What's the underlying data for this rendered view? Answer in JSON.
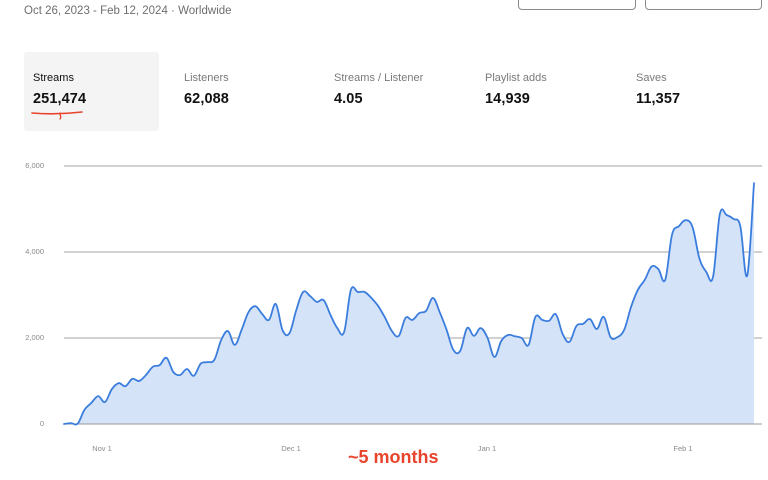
{
  "header": {
    "date_range_label": "Oct 26, 2023 - Feb 12, 2024 · Worldwide"
  },
  "top_buttons": [
    {
      "label": ""
    },
    {
      "label": ""
    }
  ],
  "stats": [
    {
      "label": "Streams",
      "value": "251,474",
      "active": true
    },
    {
      "label": "Listeners",
      "value": "62,088",
      "active": false
    },
    {
      "label": "Streams / Listener",
      "value": "4.05",
      "active": false
    },
    {
      "label": "Playlist adds",
      "value": "14,939",
      "active": false
    },
    {
      "label": "Saves",
      "value": "11,357",
      "active": false
    }
  ],
  "colors": {
    "line": "#3b7ddd",
    "fill": "#d4e3f8",
    "grid": "#9a9a9a",
    "annotation": "#e8442c",
    "underline": "#e8442c",
    "active_tab_bg": "#f4f4f4"
  },
  "annotation": {
    "text": "~5 months"
  },
  "chart_data": {
    "type": "area",
    "title": "Streams",
    "xlabel": "",
    "ylabel": "",
    "ylim": [
      0,
      6000
    ],
    "yticks": [
      "0",
      "2,000",
      "4,000",
      "6,000"
    ],
    "xticks": [
      "Nov 1",
      "Dec 1",
      "Jan 1",
      "Feb 1"
    ],
    "grid": true,
    "legend": "none",
    "x_range": [
      "Oct 26, 2023",
      "Feb 12, 2024"
    ],
    "series": [
      {
        "name": "Streams",
        "points": [
          [
            "Oct 26",
            0
          ],
          [
            "Oct 28",
            20
          ],
          [
            "Oct 30",
            10
          ],
          [
            "Nov 1",
            330
          ],
          [
            "Nov 3",
            490
          ],
          [
            "Nov 4",
            650
          ],
          [
            "Nov 5",
            510
          ],
          [
            "Nov 7",
            810
          ],
          [
            "Nov 8",
            950
          ],
          [
            "Nov 10",
            880
          ],
          [
            "Nov 11",
            1050
          ],
          [
            "Nov 12",
            1000
          ],
          [
            "Nov 13",
            1140
          ],
          [
            "Nov 14",
            1330
          ],
          [
            "Nov 16",
            1370
          ],
          [
            "Nov 17",
            1540
          ],
          [
            "Nov 18",
            1210
          ],
          [
            "Nov 19",
            1140
          ],
          [
            "Nov 20",
            1280
          ],
          [
            "Nov 21",
            1120
          ],
          [
            "Nov 22",
            1400
          ],
          [
            "Nov 24",
            1440
          ],
          [
            "Nov 25",
            1490
          ],
          [
            "Nov 26",
            1950
          ],
          [
            "Nov 27",
            2160
          ],
          [
            "Nov 28",
            1840
          ],
          [
            "Nov 29",
            2190
          ],
          [
            "Nov 30",
            2600
          ],
          [
            "Dec 1",
            2740
          ],
          [
            "Dec 2",
            2560
          ],
          [
            "Dec 3",
            2420
          ],
          [
            "Dec 4",
            2790
          ],
          [
            "Dec 5",
            2180
          ],
          [
            "Dec 6",
            2110
          ],
          [
            "Dec 7",
            2650
          ],
          [
            "Dec 8",
            3070
          ],
          [
            "Dec 9",
            2980
          ],
          [
            "Dec 10",
            2840
          ],
          [
            "Dec 11",
            2880
          ],
          [
            "Dec 12",
            2540
          ],
          [
            "Dec 13",
            2230
          ],
          [
            "Dec 14",
            2140
          ],
          [
            "Dec 15",
            3120
          ],
          [
            "Dec 16",
            3070
          ],
          [
            "Dec 17",
            3070
          ],
          [
            "Dec 18",
            2930
          ],
          [
            "Dec 19",
            2740
          ],
          [
            "Dec 20",
            2470
          ],
          [
            "Dec 21",
            2160
          ],
          [
            "Dec 22",
            2050
          ],
          [
            "Dec 23",
            2470
          ],
          [
            "Dec 24",
            2420
          ],
          [
            "Dec 25",
            2580
          ],
          [
            "Dec 26",
            2630
          ],
          [
            "Dec 27",
            2930
          ],
          [
            "Dec 28",
            2600
          ],
          [
            "Dec 29",
            2190
          ],
          [
            "Dec 30",
            1720
          ],
          [
            "Dec 31",
            1700
          ],
          [
            "Jan 1",
            2230
          ],
          [
            "Jan 2",
            2050
          ],
          [
            "Jan 3",
            2230
          ],
          [
            "Jan 4",
            2000
          ],
          [
            "Jan 5",
            1560
          ],
          [
            "Jan 6",
            1930
          ],
          [
            "Jan 7",
            2070
          ],
          [
            "Jan 8",
            2040
          ],
          [
            "Jan 9",
            2000
          ],
          [
            "Jan 10",
            1840
          ],
          [
            "Jan 11",
            2490
          ],
          [
            "Jan 12",
            2420
          ],
          [
            "Jan 13",
            2400
          ],
          [
            "Jan 14",
            2550
          ],
          [
            "Jan 15",
            2090
          ],
          [
            "Jan 16",
            1910
          ],
          [
            "Jan 17",
            2280
          ],
          [
            "Jan 18",
            2330
          ],
          [
            "Jan 19",
            2440
          ],
          [
            "Jan 20",
            2210
          ],
          [
            "Jan 21",
            2490
          ],
          [
            "Jan 22",
            2020
          ],
          [
            "Jan 23",
            2020
          ],
          [
            "Jan 24",
            2190
          ],
          [
            "Jan 25",
            2720
          ],
          [
            "Jan 26",
            3120
          ],
          [
            "Jan 27",
            3350
          ],
          [
            "Jan 28",
            3660
          ],
          [
            "Jan 29",
            3600
          ],
          [
            "Jan 30",
            3350
          ],
          [
            "Jan 31",
            4400
          ],
          [
            "Feb 1",
            4600
          ],
          [
            "Feb 2",
            4740
          ],
          [
            "Feb 3",
            4580
          ],
          [
            "Feb 4",
            3860
          ],
          [
            "Feb 5",
            3540
          ],
          [
            "Feb 6",
            3420
          ],
          [
            "Feb 7",
            4880
          ],
          [
            "Feb 8",
            4860
          ],
          [
            "Feb 9",
            4770
          ],
          [
            "Feb 10",
            4600
          ],
          [
            "Feb 11",
            3450
          ],
          [
            "Feb 12",
            5600
          ]
        ]
      }
    ]
  }
}
